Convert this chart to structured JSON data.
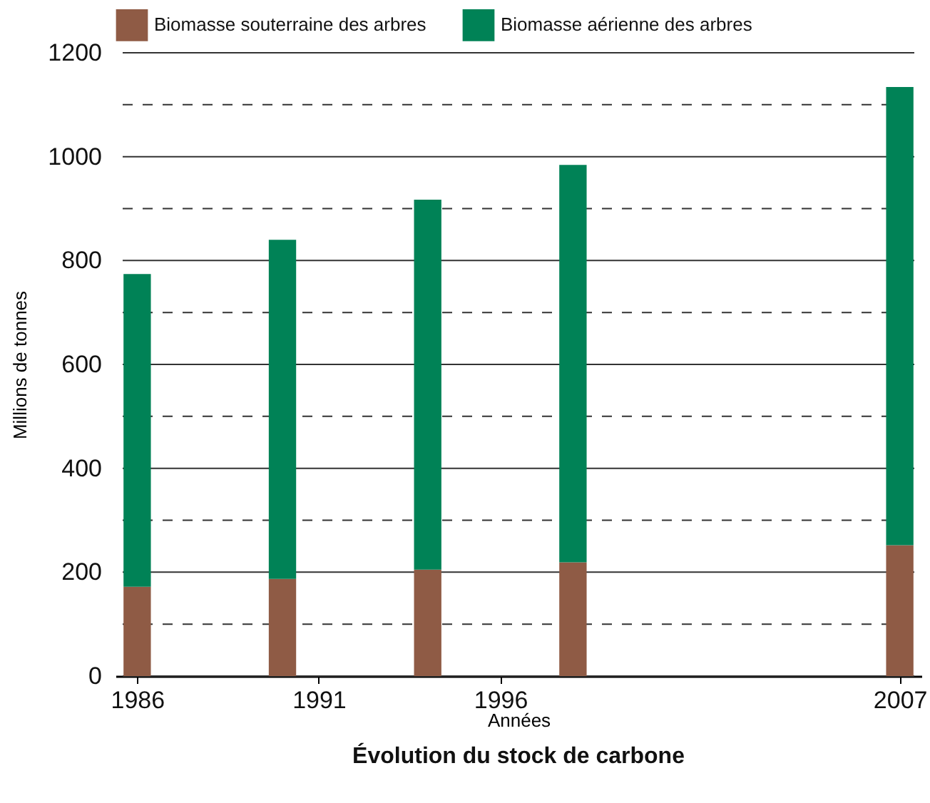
{
  "chart_data": {
    "type": "bar",
    "title": "Évolution du stock de carbone",
    "xlabel": "Années",
    "ylabel": "Millions de tonnes",
    "x": [
      1986,
      1990,
      1994,
      1998,
      2007
    ],
    "stacked": true,
    "series": [
      {
        "name": "Biomasse souterraine des arbres",
        "color": "#8f5b45",
        "values": [
          172,
          187,
          205,
          219,
          252
        ]
      },
      {
        "name": "Biomasse aérienne des arbres",
        "color": "#008256",
        "values": [
          602,
          653,
          712,
          765,
          882
        ]
      }
    ],
    "xlim": [
      1985.6,
      2007.4
    ],
    "xticks": [
      1986,
      1991,
      1996,
      2007
    ],
    "ylim": [
      0,
      1200
    ],
    "yticks": [
      0,
      {
        "value": 100,
        "label": null
      },
      200,
      {
        "value": 300,
        "label": null
      },
      400,
      {
        "value": 500,
        "label": null
      },
      600,
      {
        "value": 700,
        "label": null
      },
      800,
      {
        "value": 900,
        "label": null
      },
      1000,
      {
        "value": 1100,
        "label": null
      },
      1200
    ],
    "grid": "y",
    "legend": "top"
  }
}
